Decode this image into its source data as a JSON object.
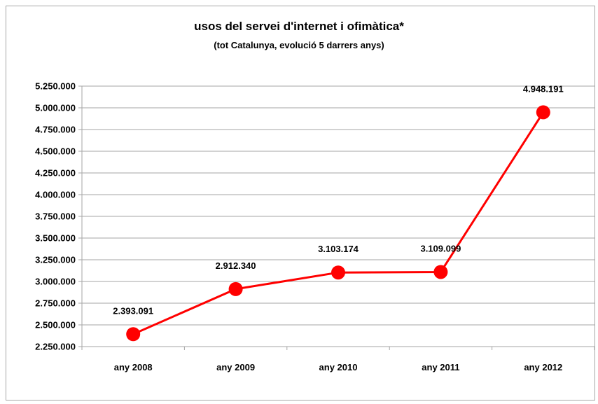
{
  "chart_data": {
    "type": "line",
    "title": "usos del servei d'internet i ofimàtica*",
    "subtitle": "(tot Catalunya, evolució 5 darrers anys)",
    "xlabel": "",
    "ylabel": "",
    "categories": [
      "any 2008",
      "any 2009",
      "any 2010",
      "any 2011",
      "any 2012"
    ],
    "series": [
      {
        "values": [
          2393091,
          2912340,
          3103174,
          3109099,
          4948191
        ],
        "data_labels": [
          "2.393.091",
          "2.912.340",
          "3.103.174",
          "3.109.099",
          "4.948.191"
        ]
      }
    ],
    "ylim": [
      2250000,
      5250000
    ],
    "yticks": [
      2250000,
      2500000,
      2750000,
      3000000,
      3250000,
      3500000,
      3750000,
      4000000,
      4250000,
      4500000,
      4750000,
      5000000,
      5250000
    ],
    "ytick_labels": [
      "2.250.000",
      "2.500.000",
      "2.750.000",
      "3.000.000",
      "3.250.000",
      "3.500.000",
      "3.750.000",
      "4.000.000",
      "4.250.000",
      "4.500.000",
      "4.750.000",
      "5.000.000",
      "5.250.000"
    ],
    "grid": true,
    "legend": "none",
    "colors": {
      "line": "#ff0000",
      "marker": "#ff0000",
      "grid": "#a6a6a6",
      "axis": "#a6a6a6"
    }
  }
}
